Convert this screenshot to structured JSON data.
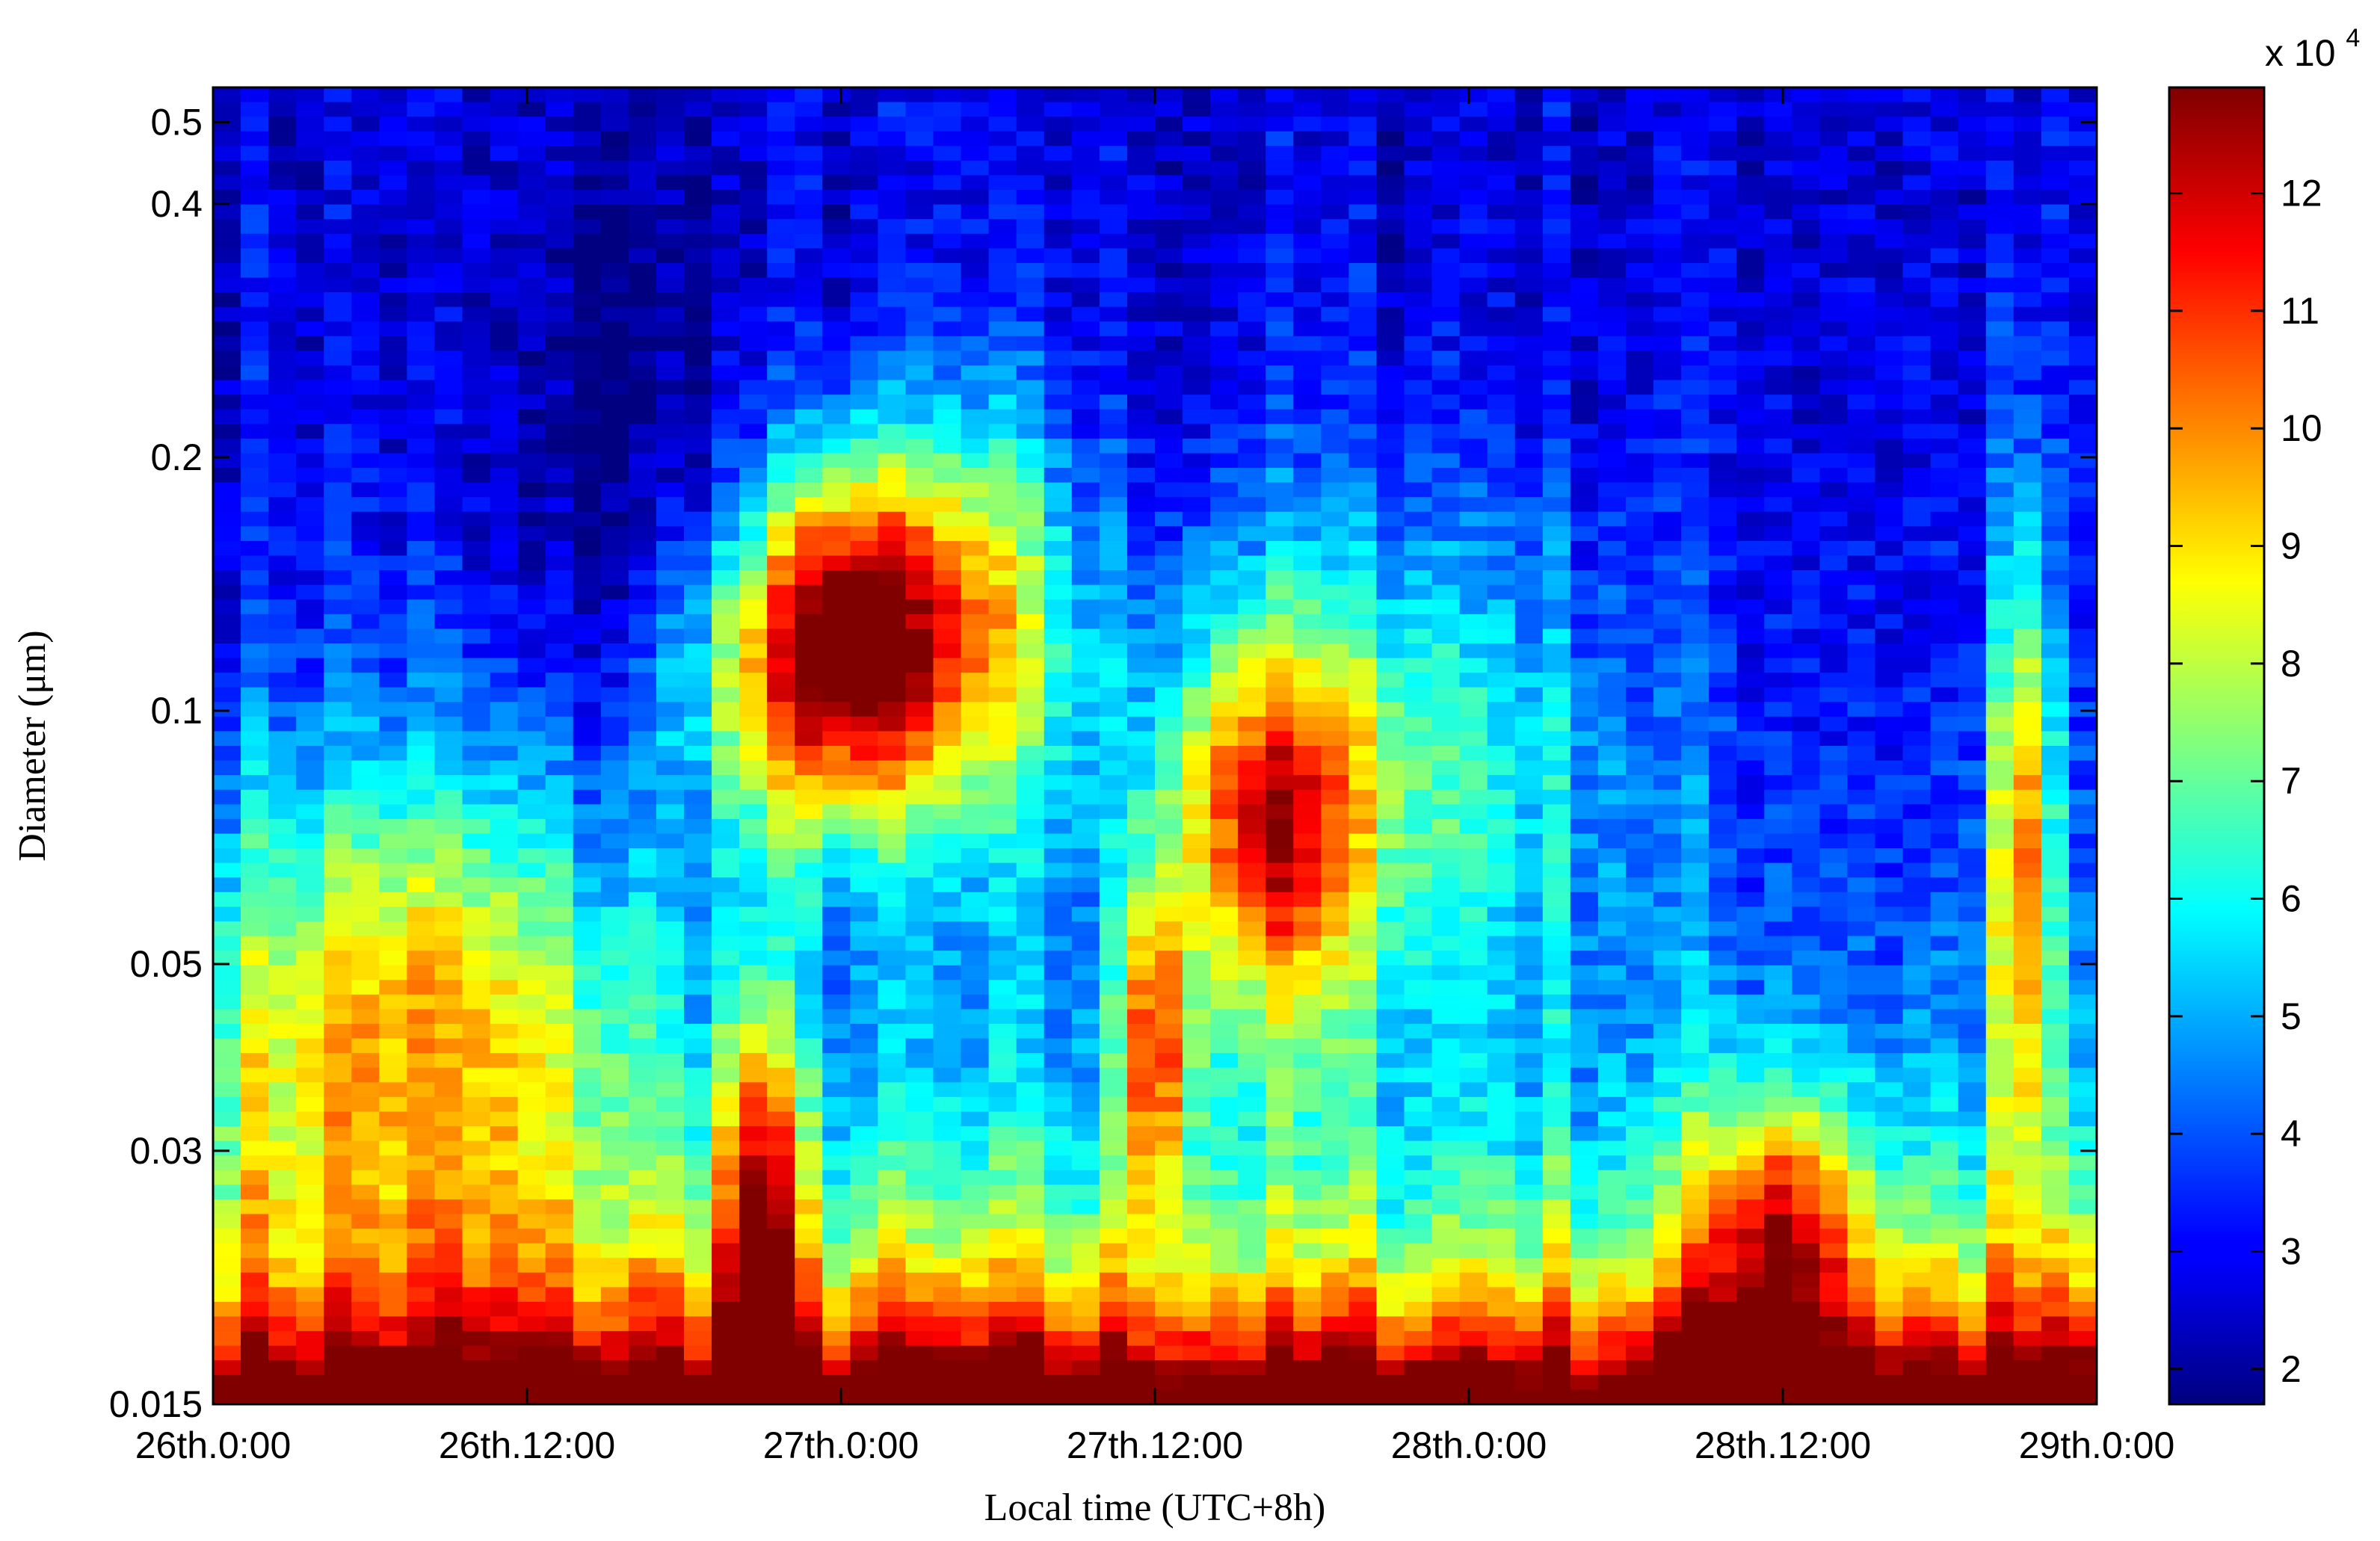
{
  "chart_data": {
    "type": "heatmap",
    "xlabel": "Local time (UTC+8h)",
    "ylabel": "Diameter (μm)",
    "y_scale": "log",
    "ylim": [
      0.015,
      0.55
    ],
    "xlim": [
      "26th.0:00",
      "29th.0:00"
    ],
    "x_tick_labels": [
      "26th.0:00",
      "26th.12:00",
      "27th.0:00",
      "27th.12:00",
      "28th.0:00",
      "28th.12:00",
      "29th.0:00"
    ],
    "y_ticks": [
      0.015,
      0.03,
      0.05,
      0.1,
      0.2,
      0.4,
      0.5
    ],
    "y_tick_labels": [
      "0.015",
      "0.03",
      "0.05",
      "0.1",
      "0.2",
      "0.4",
      "0.5"
    ],
    "colorbar": {
      "colormap": "jet",
      "multiplier_label": "x 10",
      "multiplier_exponent": "4",
      "range": [
        1.7,
        12.9
      ],
      "ticks": [
        2,
        3,
        4,
        5,
        6,
        7,
        8,
        9,
        10,
        11,
        12
      ],
      "tick_labels": [
        "2",
        "3",
        "4",
        "5",
        "6",
        "7",
        "8",
        "9",
        "10",
        "11",
        "12"
      ]
    },
    "colors": {
      "low": "#00007f",
      "mid": "#7fff7f",
      "high": "#7f0000"
    },
    "grid": false
  }
}
